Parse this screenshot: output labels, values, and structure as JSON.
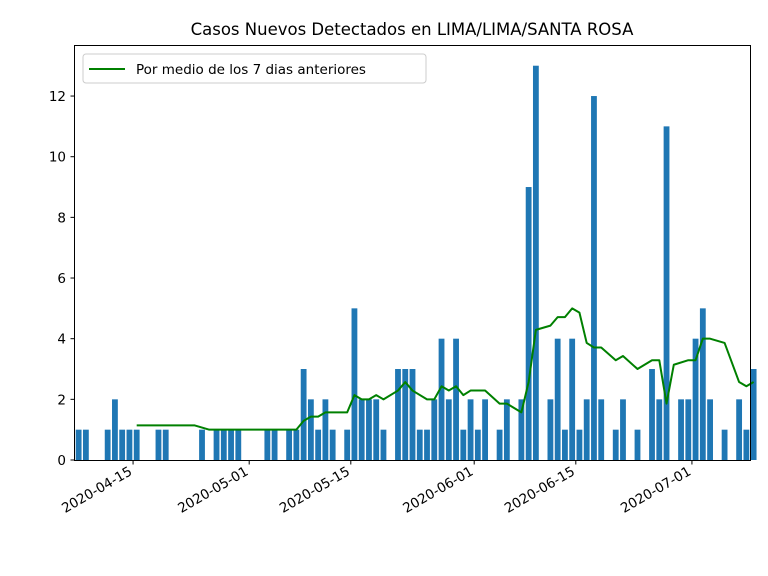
{
  "chart_data": {
    "type": "bar",
    "title": "Casos Nuevos Detectados en LIMA/LIMA/SANTA ROSA",
    "xlabel": "",
    "ylabel": "",
    "x_axis": "date",
    "xlim": [
      "2020-04-07",
      "2020-07-08"
    ],
    "ylim": [
      0,
      13.65
    ],
    "x_ticks": [
      "2020-04-15",
      "2020-05-01",
      "2020-05-15",
      "2020-06-01",
      "2020-06-15",
      "2020-07-01"
    ],
    "y_ticks": [
      0,
      2,
      4,
      6,
      8,
      10,
      12
    ],
    "grid": false,
    "legend": {
      "position": "top-left",
      "entries": [
        "Por medio de los 7 dias anteriores"
      ]
    },
    "series": [
      {
        "name": "",
        "type": "bar",
        "color": "#1f77b4",
        "points": [
          [
            "2020-04-07",
            1
          ],
          [
            "2020-04-08",
            1
          ],
          [
            "2020-04-11",
            1
          ],
          [
            "2020-04-12",
            2
          ],
          [
            "2020-04-13",
            1
          ],
          [
            "2020-04-14",
            1
          ],
          [
            "2020-04-15",
            1
          ],
          [
            "2020-04-18",
            1
          ],
          [
            "2020-04-19",
            1
          ],
          [
            "2020-04-24",
            1
          ],
          [
            "2020-04-26",
            1
          ],
          [
            "2020-04-27",
            1
          ],
          [
            "2020-04-28",
            1
          ],
          [
            "2020-04-29",
            1
          ],
          [
            "2020-05-03",
            1
          ],
          [
            "2020-05-04",
            1
          ],
          [
            "2020-05-06",
            1
          ],
          [
            "2020-05-07",
            1
          ],
          [
            "2020-05-08",
            3
          ],
          [
            "2020-05-09",
            2
          ],
          [
            "2020-05-10",
            1
          ],
          [
            "2020-05-11",
            2
          ],
          [
            "2020-05-12",
            1
          ],
          [
            "2020-05-14",
            1
          ],
          [
            "2020-05-15",
            5
          ],
          [
            "2020-05-16",
            2
          ],
          [
            "2020-05-17",
            2
          ],
          [
            "2020-05-18",
            2
          ],
          [
            "2020-05-19",
            1
          ],
          [
            "2020-05-21",
            3
          ],
          [
            "2020-05-22",
            3
          ],
          [
            "2020-05-23",
            3
          ],
          [
            "2020-05-24",
            1
          ],
          [
            "2020-05-25",
            1
          ],
          [
            "2020-05-26",
            2
          ],
          [
            "2020-05-27",
            4
          ],
          [
            "2020-05-28",
            2
          ],
          [
            "2020-05-29",
            4
          ],
          [
            "2020-05-30",
            1
          ],
          [
            "2020-05-31",
            2
          ],
          [
            "2020-06-01",
            1
          ],
          [
            "2020-06-02",
            2
          ],
          [
            "2020-06-04",
            1
          ],
          [
            "2020-06-05",
            2
          ],
          [
            "2020-06-07",
            2
          ],
          [
            "2020-06-08",
            9
          ],
          [
            "2020-06-09",
            13
          ],
          [
            "2020-06-11",
            2
          ],
          [
            "2020-06-12",
            4
          ],
          [
            "2020-06-13",
            1
          ],
          [
            "2020-06-14",
            4
          ],
          [
            "2020-06-15",
            1
          ],
          [
            "2020-06-16",
            2
          ],
          [
            "2020-06-17",
            12
          ],
          [
            "2020-06-18",
            2
          ],
          [
            "2020-06-20",
            1
          ],
          [
            "2020-06-21",
            2
          ],
          [
            "2020-06-23",
            1
          ],
          [
            "2020-06-25",
            3
          ],
          [
            "2020-06-26",
            2
          ],
          [
            "2020-06-27",
            11
          ],
          [
            "2020-06-29",
            2
          ],
          [
            "2020-06-30",
            2
          ],
          [
            "2020-07-01",
            4
          ],
          [
            "2020-07-02",
            5
          ],
          [
            "2020-07-03",
            2
          ],
          [
            "2020-07-05",
            1
          ],
          [
            "2020-07-07",
            2
          ],
          [
            "2020-07-08",
            1
          ],
          [
            "2020-07-09",
            3
          ]
        ]
      },
      {
        "name": "Por medio de los 7 dias anteriores",
        "type": "line",
        "color": "#008000",
        "points": [
          [
            "2020-04-15",
            1.14
          ],
          [
            "2020-04-23",
            1.14
          ],
          [
            "2020-04-25",
            1.0
          ],
          [
            "2020-05-07",
            1.0
          ],
          [
            "2020-05-08",
            1.29
          ],
          [
            "2020-05-09",
            1.43
          ],
          [
            "2020-05-10",
            1.43
          ],
          [
            "2020-05-11",
            1.57
          ],
          [
            "2020-05-14",
            1.57
          ],
          [
            "2020-05-15",
            2.14
          ],
          [
            "2020-05-16",
            2.0
          ],
          [
            "2020-05-17",
            2.0
          ],
          [
            "2020-05-18",
            2.14
          ],
          [
            "2020-05-19",
            2.0
          ],
          [
            "2020-05-21",
            2.29
          ],
          [
            "2020-05-22",
            2.57
          ],
          [
            "2020-05-23",
            2.29
          ],
          [
            "2020-05-25",
            2.0
          ],
          [
            "2020-05-26",
            2.0
          ],
          [
            "2020-05-27",
            2.43
          ],
          [
            "2020-05-28",
            2.29
          ],
          [
            "2020-05-29",
            2.43
          ],
          [
            "2020-05-30",
            2.14
          ],
          [
            "2020-05-31",
            2.29
          ],
          [
            "2020-06-02",
            2.29
          ],
          [
            "2020-06-04",
            1.86
          ],
          [
            "2020-06-05",
            1.86
          ],
          [
            "2020-06-07",
            1.57
          ],
          [
            "2020-06-08",
            2.57
          ],
          [
            "2020-06-09",
            4.29
          ],
          [
            "2020-06-11",
            4.43
          ],
          [
            "2020-06-12",
            4.71
          ],
          [
            "2020-06-13",
            4.71
          ],
          [
            "2020-06-14",
            5.0
          ],
          [
            "2020-06-15",
            4.86
          ],
          [
            "2020-06-16",
            3.86
          ],
          [
            "2020-06-17",
            3.71
          ],
          [
            "2020-06-18",
            3.71
          ],
          [
            "2020-06-20",
            3.29
          ],
          [
            "2020-06-21",
            3.43
          ],
          [
            "2020-06-23",
            3.0
          ],
          [
            "2020-06-25",
            3.29
          ],
          [
            "2020-06-26",
            3.29
          ],
          [
            "2020-06-27",
            1.86
          ],
          [
            "2020-06-28",
            3.14
          ],
          [
            "2020-06-30",
            3.29
          ],
          [
            "2020-07-01",
            3.29
          ],
          [
            "2020-07-02",
            4.0
          ],
          [
            "2020-07-03",
            4.0
          ],
          [
            "2020-07-05",
            3.86
          ],
          [
            "2020-07-07",
            2.57
          ],
          [
            "2020-07-08",
            2.43
          ],
          [
            "2020-07-09",
            2.57
          ]
        ]
      }
    ]
  }
}
